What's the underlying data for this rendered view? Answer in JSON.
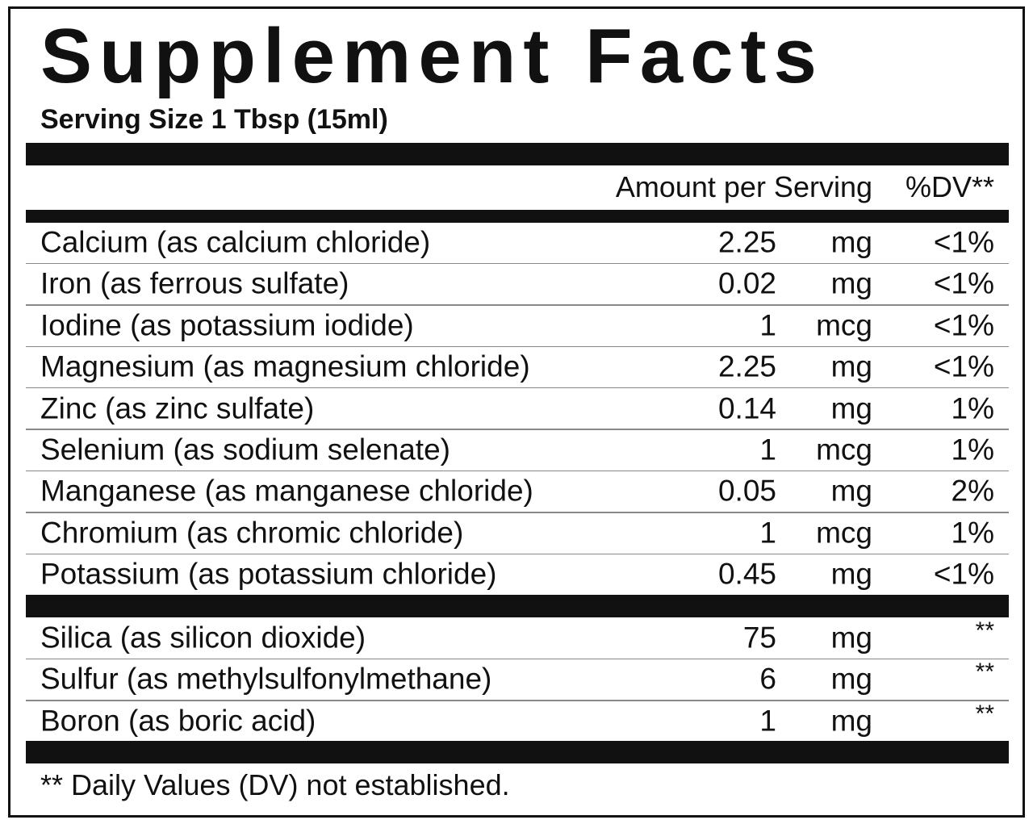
{
  "header": {
    "title": "Supplement Facts",
    "serving": "Serving Size 1 Tbsp (15ml)"
  },
  "table": {
    "columns": [
      "Amount per Serving",
      "%DV**"
    ],
    "groups": [
      {
        "rows": [
          {
            "name": "Calcium (as calcium chloride)",
            "amount": "2.25",
            "unit": "mg",
            "dv": "<1%"
          },
          {
            "name": "Iron (as ferrous sulfate)",
            "amount": "0.02",
            "unit": "mg",
            "dv": "<1%"
          },
          {
            "name": "Iodine (as potassium iodide)",
            "amount": "1",
            "unit": "mcg",
            "dv": "<1%"
          },
          {
            "name": "Magnesium (as magnesium chloride)",
            "amount": "2.25",
            "unit": "mg",
            "dv": "<1%"
          },
          {
            "name": "Zinc (as zinc sulfate)",
            "amount": "0.14",
            "unit": "mg",
            "dv": "1%"
          },
          {
            "name": "Selenium (as sodium selenate)",
            "amount": "1",
            "unit": "mcg",
            "dv": "1%"
          },
          {
            "name": "Manganese (as manganese chloride)",
            "amount": "0.05",
            "unit": "mg",
            "dv": "2%"
          },
          {
            "name": "Chromium (as chromic chloride)",
            "amount": "1",
            "unit": "mcg",
            "dv": "1%"
          },
          {
            "name": "Potassium (as potassium chloride)",
            "amount": "0.45",
            "unit": "mg",
            "dv": "<1%"
          }
        ]
      },
      {
        "rows": [
          {
            "name": "Silica (as silicon dioxide)",
            "amount": "75",
            "unit": "mg",
            "dv": "**"
          },
          {
            "name": "Sulfur (as methylsulfonylmethane)",
            "amount": "6",
            "unit": "mg",
            "dv": "**"
          },
          {
            "name": "Boron (as boric acid)",
            "amount": "1",
            "unit": "mg",
            "dv": "**"
          }
        ]
      }
    ]
  },
  "footnote": "** Daily Values (DV) not established."
}
